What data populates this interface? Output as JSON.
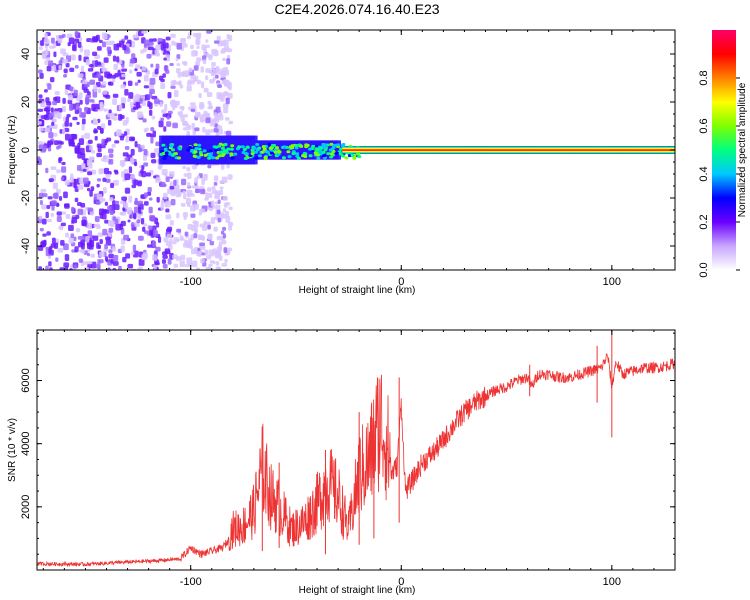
{
  "title": "C2E4.2026.074.16.40.E23",
  "chart_data": [
    {
      "type": "heatmap",
      "name": "spectrogram",
      "xlabel": "Height of straight line (km)",
      "ylabel": "Frequency (Hz)",
      "xlim": [
        -173,
        130
      ],
      "ylim": [
        -50,
        50
      ],
      "xticks": [
        -100,
        0,
        100
      ],
      "xtick_labels": [
        "-100",
        "0",
        "100"
      ],
      "yticks": [
        40,
        20,
        0,
        -20,
        -40
      ],
      "ytick_labels": [
        "40",
        "20",
        "0",
        "-20",
        "-40"
      ],
      "band_center_hz": 0,
      "noise_region_km": [
        -173,
        -82
      ],
      "colorbar": {
        "label": "Normalized spectral amplitude",
        "range": [
          0,
          1
        ],
        "ticks": [
          0.0,
          0.2,
          0.4,
          0.6,
          0.8
        ],
        "tick_labels": [
          "0.0",
          "0.2",
          "0.4",
          "0.6",
          "0.8"
        ],
        "colors": [
          "#ffffff",
          "#c9a6ff",
          "#6a00ff",
          "#0000ff",
          "#00c8ff",
          "#00ff7f",
          "#7fff00",
          "#ffff00",
          "#ff8000",
          "#ff0000",
          "#ff0066"
        ]
      }
    },
    {
      "type": "line",
      "name": "snr",
      "xlabel": "Height of straight line (km)",
      "ylabel": "SNR (10 * v/v)",
      "xlim": [
        -173,
        130
      ],
      "ylim": [
        0,
        7600
      ],
      "xticks": [
        -100,
        0,
        100
      ],
      "xtick_labels": [
        "-100",
        "0",
        "100"
      ],
      "yticks": [
        2000,
        4000,
        6000
      ],
      "ytick_labels": [
        "2000",
        "4000",
        "6000"
      ],
      "color": "#ee3333",
      "points": [
        [
          -173,
          200
        ],
        [
          -150,
          180
        ],
        [
          -130,
          250
        ],
        [
          -115,
          300
        ],
        [
          -105,
          350
        ],
        [
          -100,
          700
        ],
        [
          -95,
          500
        ],
        [
          -85,
          700
        ],
        [
          -80,
          1100
        ],
        [
          -75,
          1200
        ],
        [
          -70,
          1600
        ],
        [
          -66,
          2800
        ],
        [
          -62,
          2000
        ],
        [
          -58,
          1700
        ],
        [
          -52,
          1100
        ],
        [
          -46,
          1300
        ],
        [
          -40,
          1800
        ],
        [
          -35,
          2400
        ],
        [
          -30,
          2000
        ],
        [
          -25,
          1100
        ],
        [
          -20,
          2600
        ],
        [
          -15,
          3000
        ],
        [
          -10,
          4100
        ],
        [
          -5,
          3000
        ],
        [
          -2,
          3300
        ],
        [
          0,
          5300
        ],
        [
          2,
          2500
        ],
        [
          5,
          2800
        ],
        [
          10,
          3400
        ],
        [
          15,
          3700
        ],
        [
          20,
          4100
        ],
        [
          25,
          4600
        ],
        [
          30,
          5000
        ],
        [
          35,
          5300
        ],
        [
          40,
          5500
        ],
        [
          45,
          5700
        ],
        [
          50,
          5800
        ],
        [
          55,
          6000
        ],
        [
          60,
          6100
        ],
        [
          62,
          5800
        ],
        [
          65,
          6200
        ],
        [
          70,
          6200
        ],
        [
          75,
          6100
        ],
        [
          80,
          6100
        ],
        [
          85,
          6200
        ],
        [
          90,
          6300
        ],
        [
          95,
          6400
        ],
        [
          98,
          6800
        ],
        [
          100,
          5800
        ],
        [
          102,
          6600
        ],
        [
          105,
          6200
        ],
        [
          110,
          6300
        ],
        [
          115,
          6400
        ],
        [
          120,
          6400
        ],
        [
          125,
          6450
        ],
        [
          130,
          6550
        ]
      ],
      "spikes": [
        {
          "x": -66,
          "high": 4300,
          "low": 600
        },
        {
          "x": -58,
          "high": 3400,
          "low": 700
        },
        {
          "x": -36,
          "high": 3800,
          "low": 500
        },
        {
          "x": -20,
          "high": 5000,
          "low": 800
        },
        {
          "x": -13,
          "high": 4600,
          "low": 1000
        },
        {
          "x": -1,
          "high": 6100,
          "low": 1500
        },
        {
          "x": 61,
          "high": 6500,
          "low": 5500
        },
        {
          "x": 93,
          "high": 7100,
          "low": 5300
        },
        {
          "x": 100,
          "high": 7600,
          "low": 4200
        }
      ]
    }
  ]
}
